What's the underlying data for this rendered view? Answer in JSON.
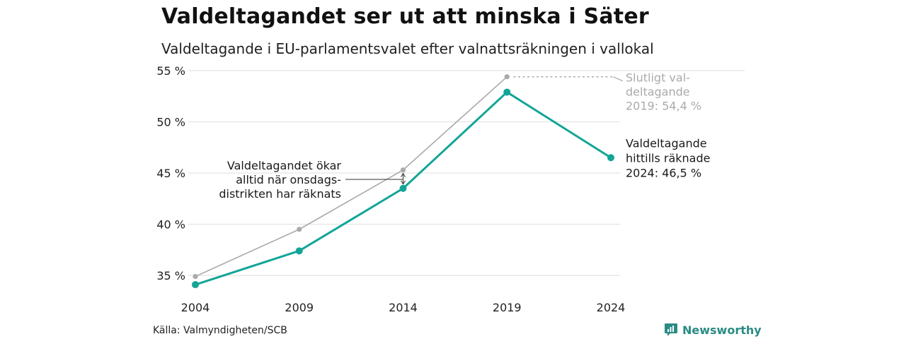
{
  "header": {
    "title": "Valdeltagandet ser ut att minska i Säter",
    "subtitle": "Valdeltagande i EU-parlamentsvalet efter valnattsräkningen i vallokal"
  },
  "footer": {
    "source": "Källa: Valmyndigheten/SCB",
    "brand": "Newsworthy",
    "brand_icon": "newsworthy-logo-icon"
  },
  "chart_data": {
    "type": "line",
    "x": [
      "2004",
      "2009",
      "2014",
      "2019",
      "2024"
    ],
    "ylim": [
      33.5,
      55.5
    ],
    "y_ticks": [
      35,
      40,
      45,
      50,
      55
    ],
    "y_tick_labels": [
      "35 %",
      "40 %",
      "45 %",
      "50 %",
      "55 %"
    ],
    "grid": true,
    "series": [
      {
        "key": "final",
        "values": [
          34.9,
          39.5,
          45.3,
          54.4,
          null
        ],
        "color": "#aaaaaa"
      },
      {
        "key": "election_night",
        "values": [
          34.1,
          37.4,
          43.5,
          52.9,
          46.5
        ],
        "color": "#12a597"
      }
    ],
    "annotations": {
      "final": [
        "Slutligt val-",
        "deltagande",
        "2019: 54,4 %"
      ],
      "current": [
        "Valdeltagande",
        "hittills räknade",
        "2024: 46,5 %"
      ],
      "note": [
        "Valdeltagandet ökar",
        "alltid när onsdags-",
        "distrikten har räknats"
      ]
    }
  }
}
